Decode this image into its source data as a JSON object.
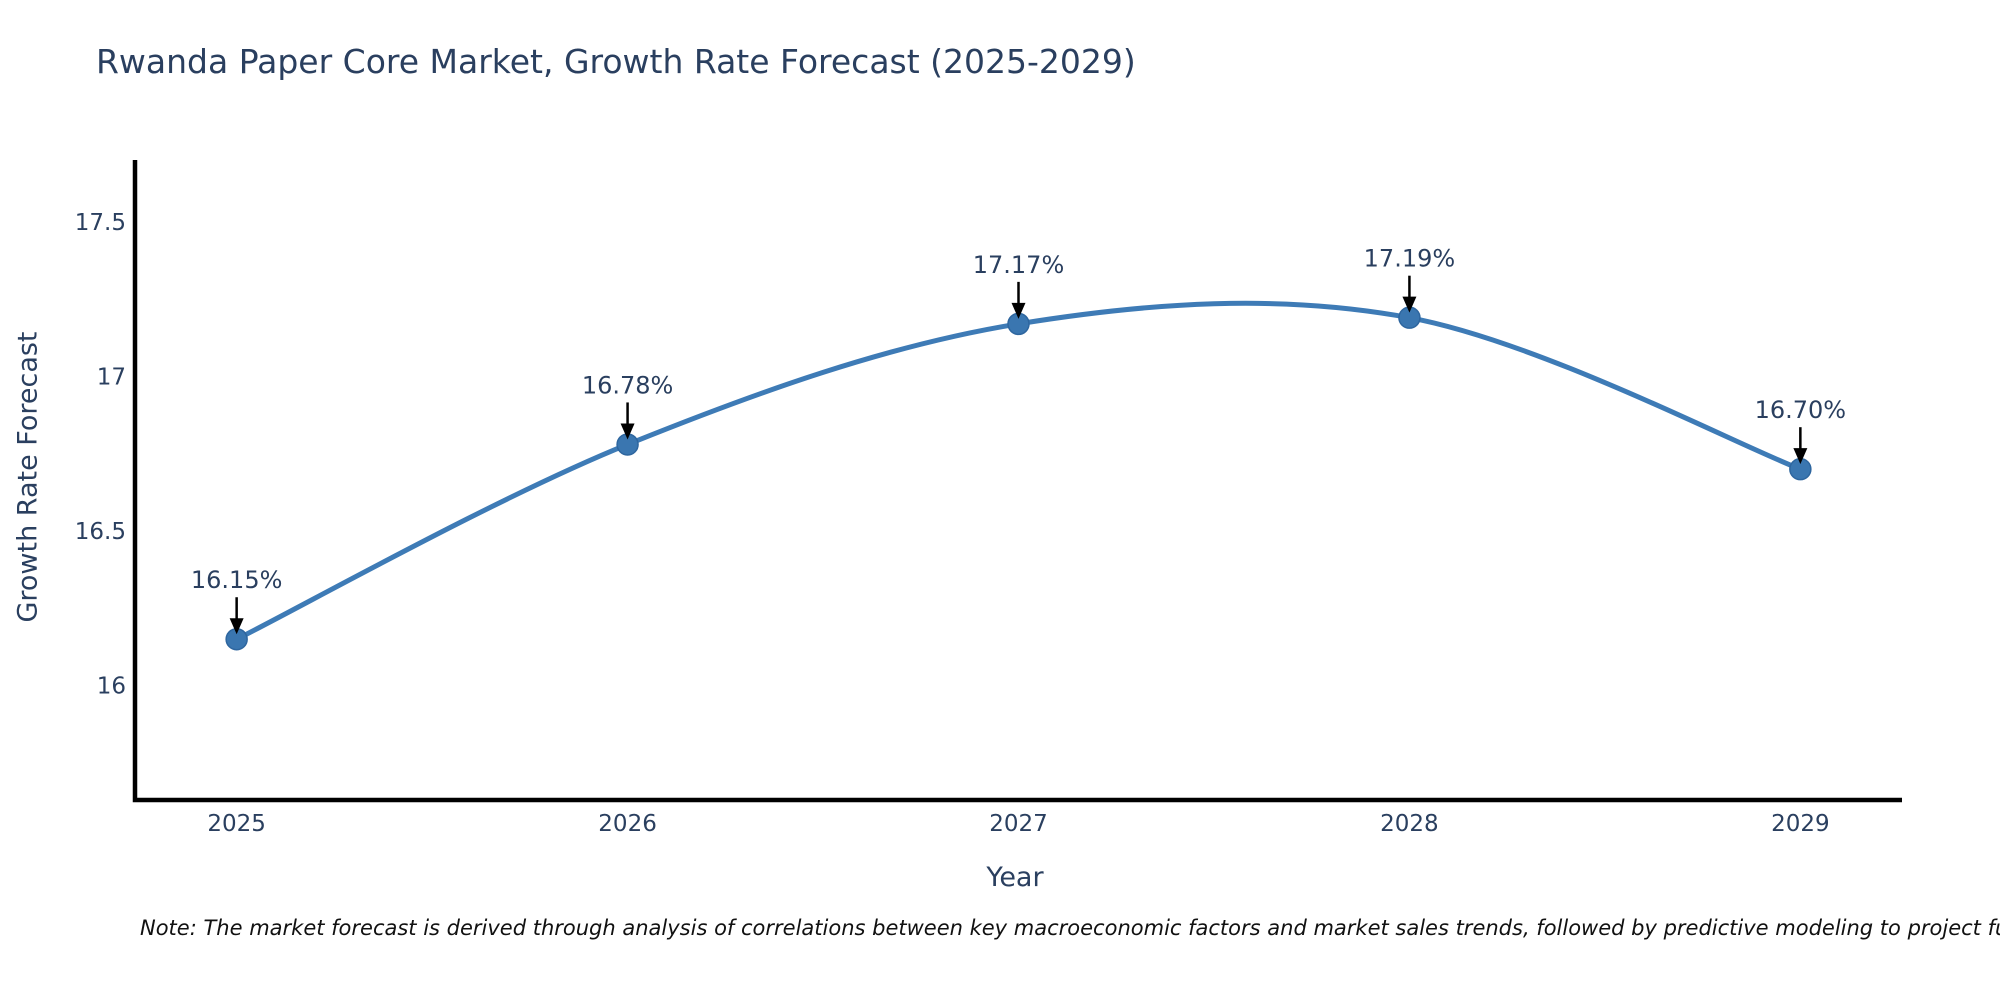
{
  "chart_data": {
    "type": "line",
    "title": "Rwanda Paper Core Market, Growth Rate Forecast (2025-2029)",
    "xlabel": "Year",
    "ylabel": "Growth Rate Forecast",
    "categories": [
      2025,
      2026,
      2027,
      2028,
      2029
    ],
    "x_tick_labels": [
      "2025",
      "2026",
      "2027",
      "2028",
      "2029"
    ],
    "series": [
      {
        "name": "Growth Rate Forecast",
        "values": [
          16.15,
          16.78,
          17.17,
          17.19,
          16.7
        ],
        "point_labels": [
          "16.15%",
          "16.78%",
          "17.17%",
          "17.19%",
          "16.70%"
        ]
      }
    ],
    "yticks": [
      16,
      16.5,
      17,
      17.5
    ],
    "ytick_labels": [
      "16",
      "16.5",
      "17",
      "17.5"
    ],
    "xlim": [
      2024.74,
      2029.26
    ],
    "ylim": [
      15.63,
      17.7
    ],
    "grid": false,
    "legend": false,
    "line_smooth": true,
    "annotation_style": "value label with down arrow to marker",
    "colors": {
      "line": "#3e7bb6",
      "marker_fill": "#3a76b0",
      "marker_stroke": "#2e669f",
      "axis_spine": "#000000",
      "chart_text": "#2a3f5f",
      "annotation_text": "#2a3f5f",
      "annotation_arrow": "#000000",
      "background": "#ffffff"
    }
  },
  "footnote": {
    "text": "Note: The market forecast is derived through analysis of correlations between key macroeconomic factors and market sales trends, followed by predictive modeling to project future sal"
  }
}
